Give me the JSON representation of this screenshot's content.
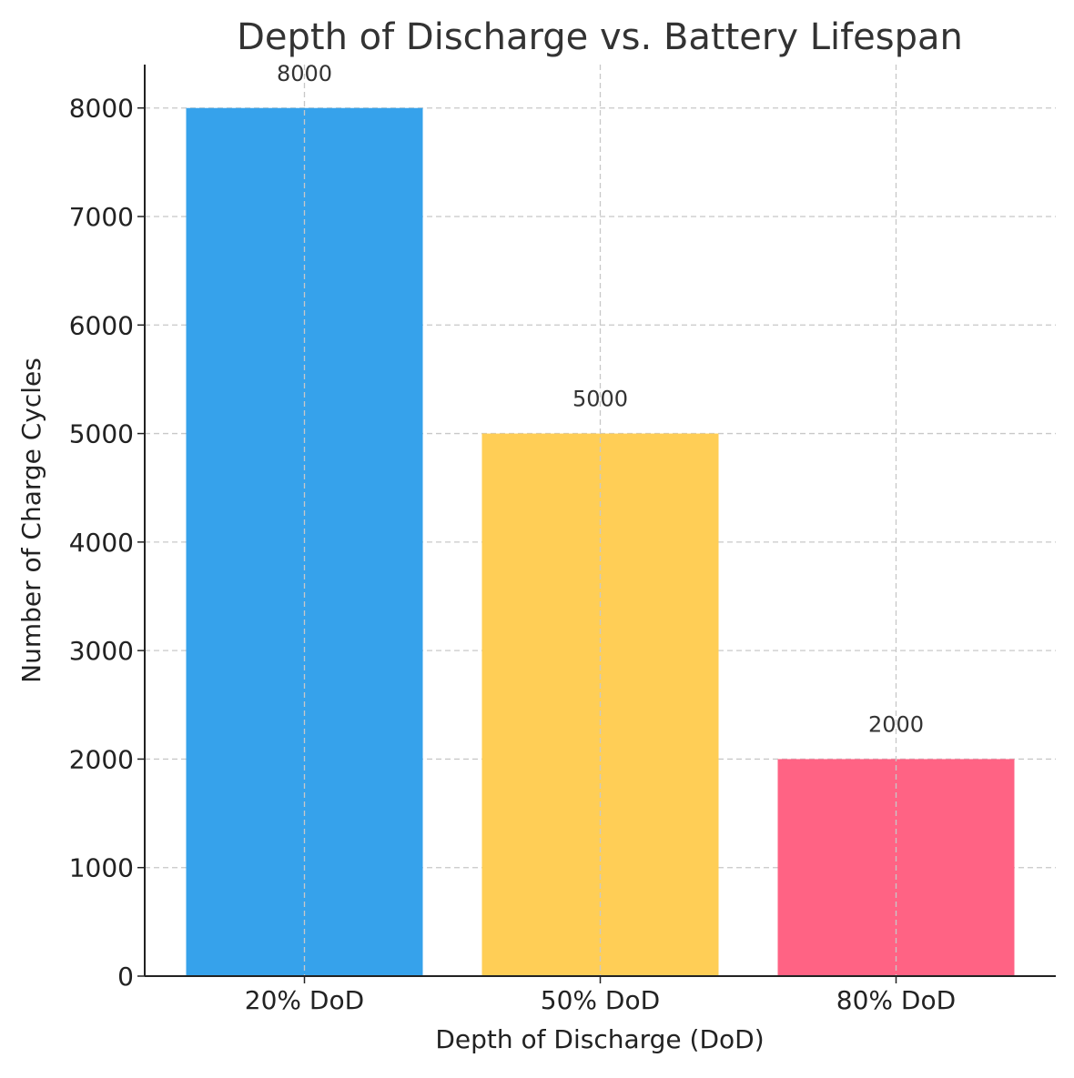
{
  "chart_data": {
    "type": "bar",
    "title": "Depth of Discharge vs. Battery Lifespan",
    "xlabel": "Depth of Discharge (DoD)",
    "ylabel": "Number of Charge Cycles",
    "categories": [
      "20% DoD",
      "50% DoD",
      "80% DoD"
    ],
    "values": [
      8000,
      5000,
      2000
    ],
    "data_labels": [
      "8000",
      "5000",
      "2000"
    ],
    "colors": [
      "#36A2EB",
      "#FFCE56",
      "#FF6384"
    ],
    "ylim": [
      0,
      8400
    ],
    "yticks": [
      0,
      1000,
      2000,
      3000,
      4000,
      5000,
      6000,
      7000,
      8000
    ],
    "grid": true,
    "legend": "none"
  }
}
